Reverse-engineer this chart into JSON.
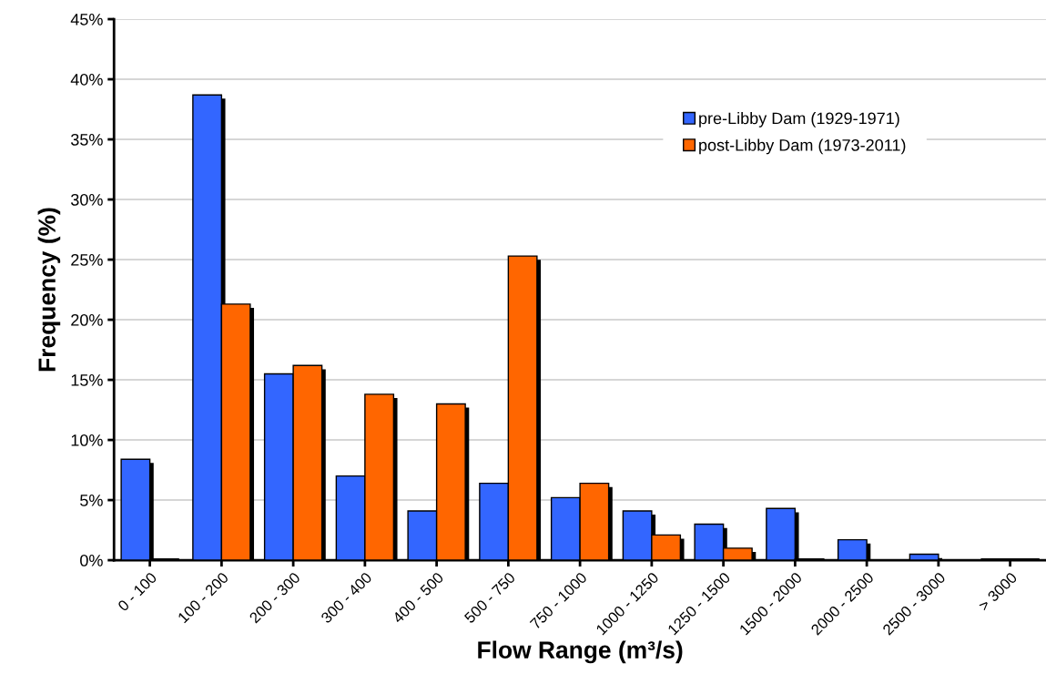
{
  "chart_data": {
    "type": "bar",
    "xlabel": "Flow Range (m³/s)",
    "ylabel": "Frequency (%)",
    "categories": [
      "0 - 100",
      "100 - 200",
      "200 - 300",
      "300 - 400",
      "400 - 500",
      "500 - 750",
      "750 - 1000",
      "1000 - 1250",
      "1250 - 1500",
      "1500 - 2000",
      "2000 - 2500",
      "2500 - 3000",
      "> 3000"
    ],
    "series": [
      {
        "name": "pre-Libby Dam (1929-1971)",
        "color": "#3366ff",
        "values": [
          8.4,
          38.7,
          15.5,
          7.0,
          4.1,
          6.4,
          5.2,
          4.1,
          3.0,
          4.3,
          1.7,
          0.5,
          0.1
        ]
      },
      {
        "name": "post-Libby Dam (1973-2011)",
        "color": "#ff6600",
        "values": [
          0.1,
          21.3,
          16.2,
          13.8,
          13.0,
          25.3,
          6.4,
          2.1,
          1.0,
          0.1,
          null,
          null,
          0.1
        ]
      }
    ],
    "ylim": [
      0,
      45
    ],
    "yticks": [
      {
        "value": 0,
        "label": "0%"
      },
      {
        "value": 5,
        "label": "5%"
      },
      {
        "value": 10,
        "label": "10%"
      },
      {
        "value": 15,
        "label": "15%"
      },
      {
        "value": 20,
        "label": "20%"
      },
      {
        "value": 25,
        "label": "25%"
      },
      {
        "value": 30,
        "label": "30%"
      },
      {
        "value": 35,
        "label": "35%"
      },
      {
        "value": 40,
        "label": "40%"
      },
      {
        "value": 45,
        "label": "45%"
      }
    ],
    "grid": "y",
    "legend": "top right"
  }
}
